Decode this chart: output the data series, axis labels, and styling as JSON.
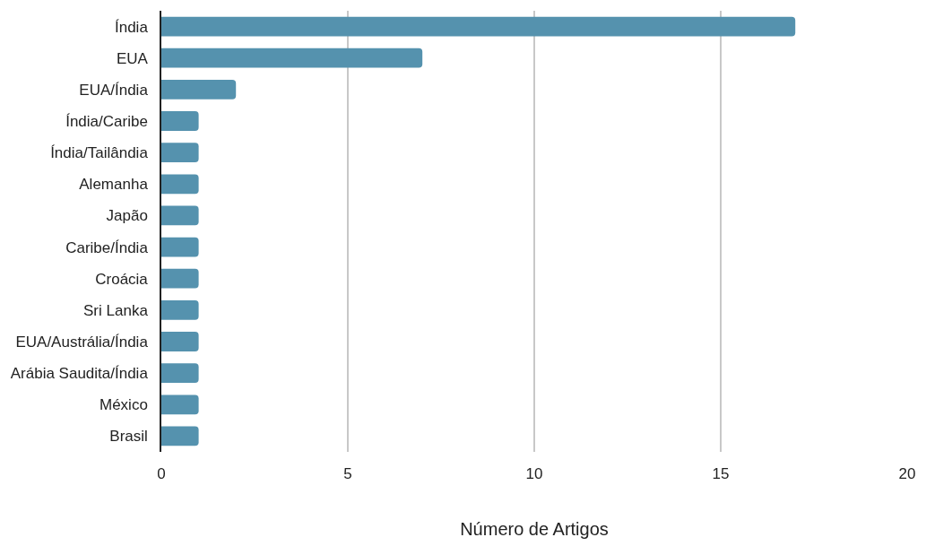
{
  "chart_data": {
    "type": "bar",
    "orientation": "horizontal",
    "xlabel": "Número de Artigos",
    "categories": [
      "Índia",
      "EUA",
      "EUA/Índia",
      "Índia/Caribe",
      "Índia/Tailândia",
      "Alemanha",
      "Japão",
      "Caribe/Índia",
      "Croácia",
      "Sri Lanka",
      "EUA/Austrália/Índia",
      "Arábia Saudita/Índia",
      "México",
      "Brasil"
    ],
    "values": [
      17,
      7,
      2,
      1,
      1,
      1,
      1,
      1,
      1,
      1,
      1,
      1,
      1,
      1
    ],
    "color": "#5592ae",
    "xlim": [
      0,
      20
    ],
    "xticks": [
      0,
      5,
      10,
      15,
      20
    ],
    "grid": "x"
  }
}
